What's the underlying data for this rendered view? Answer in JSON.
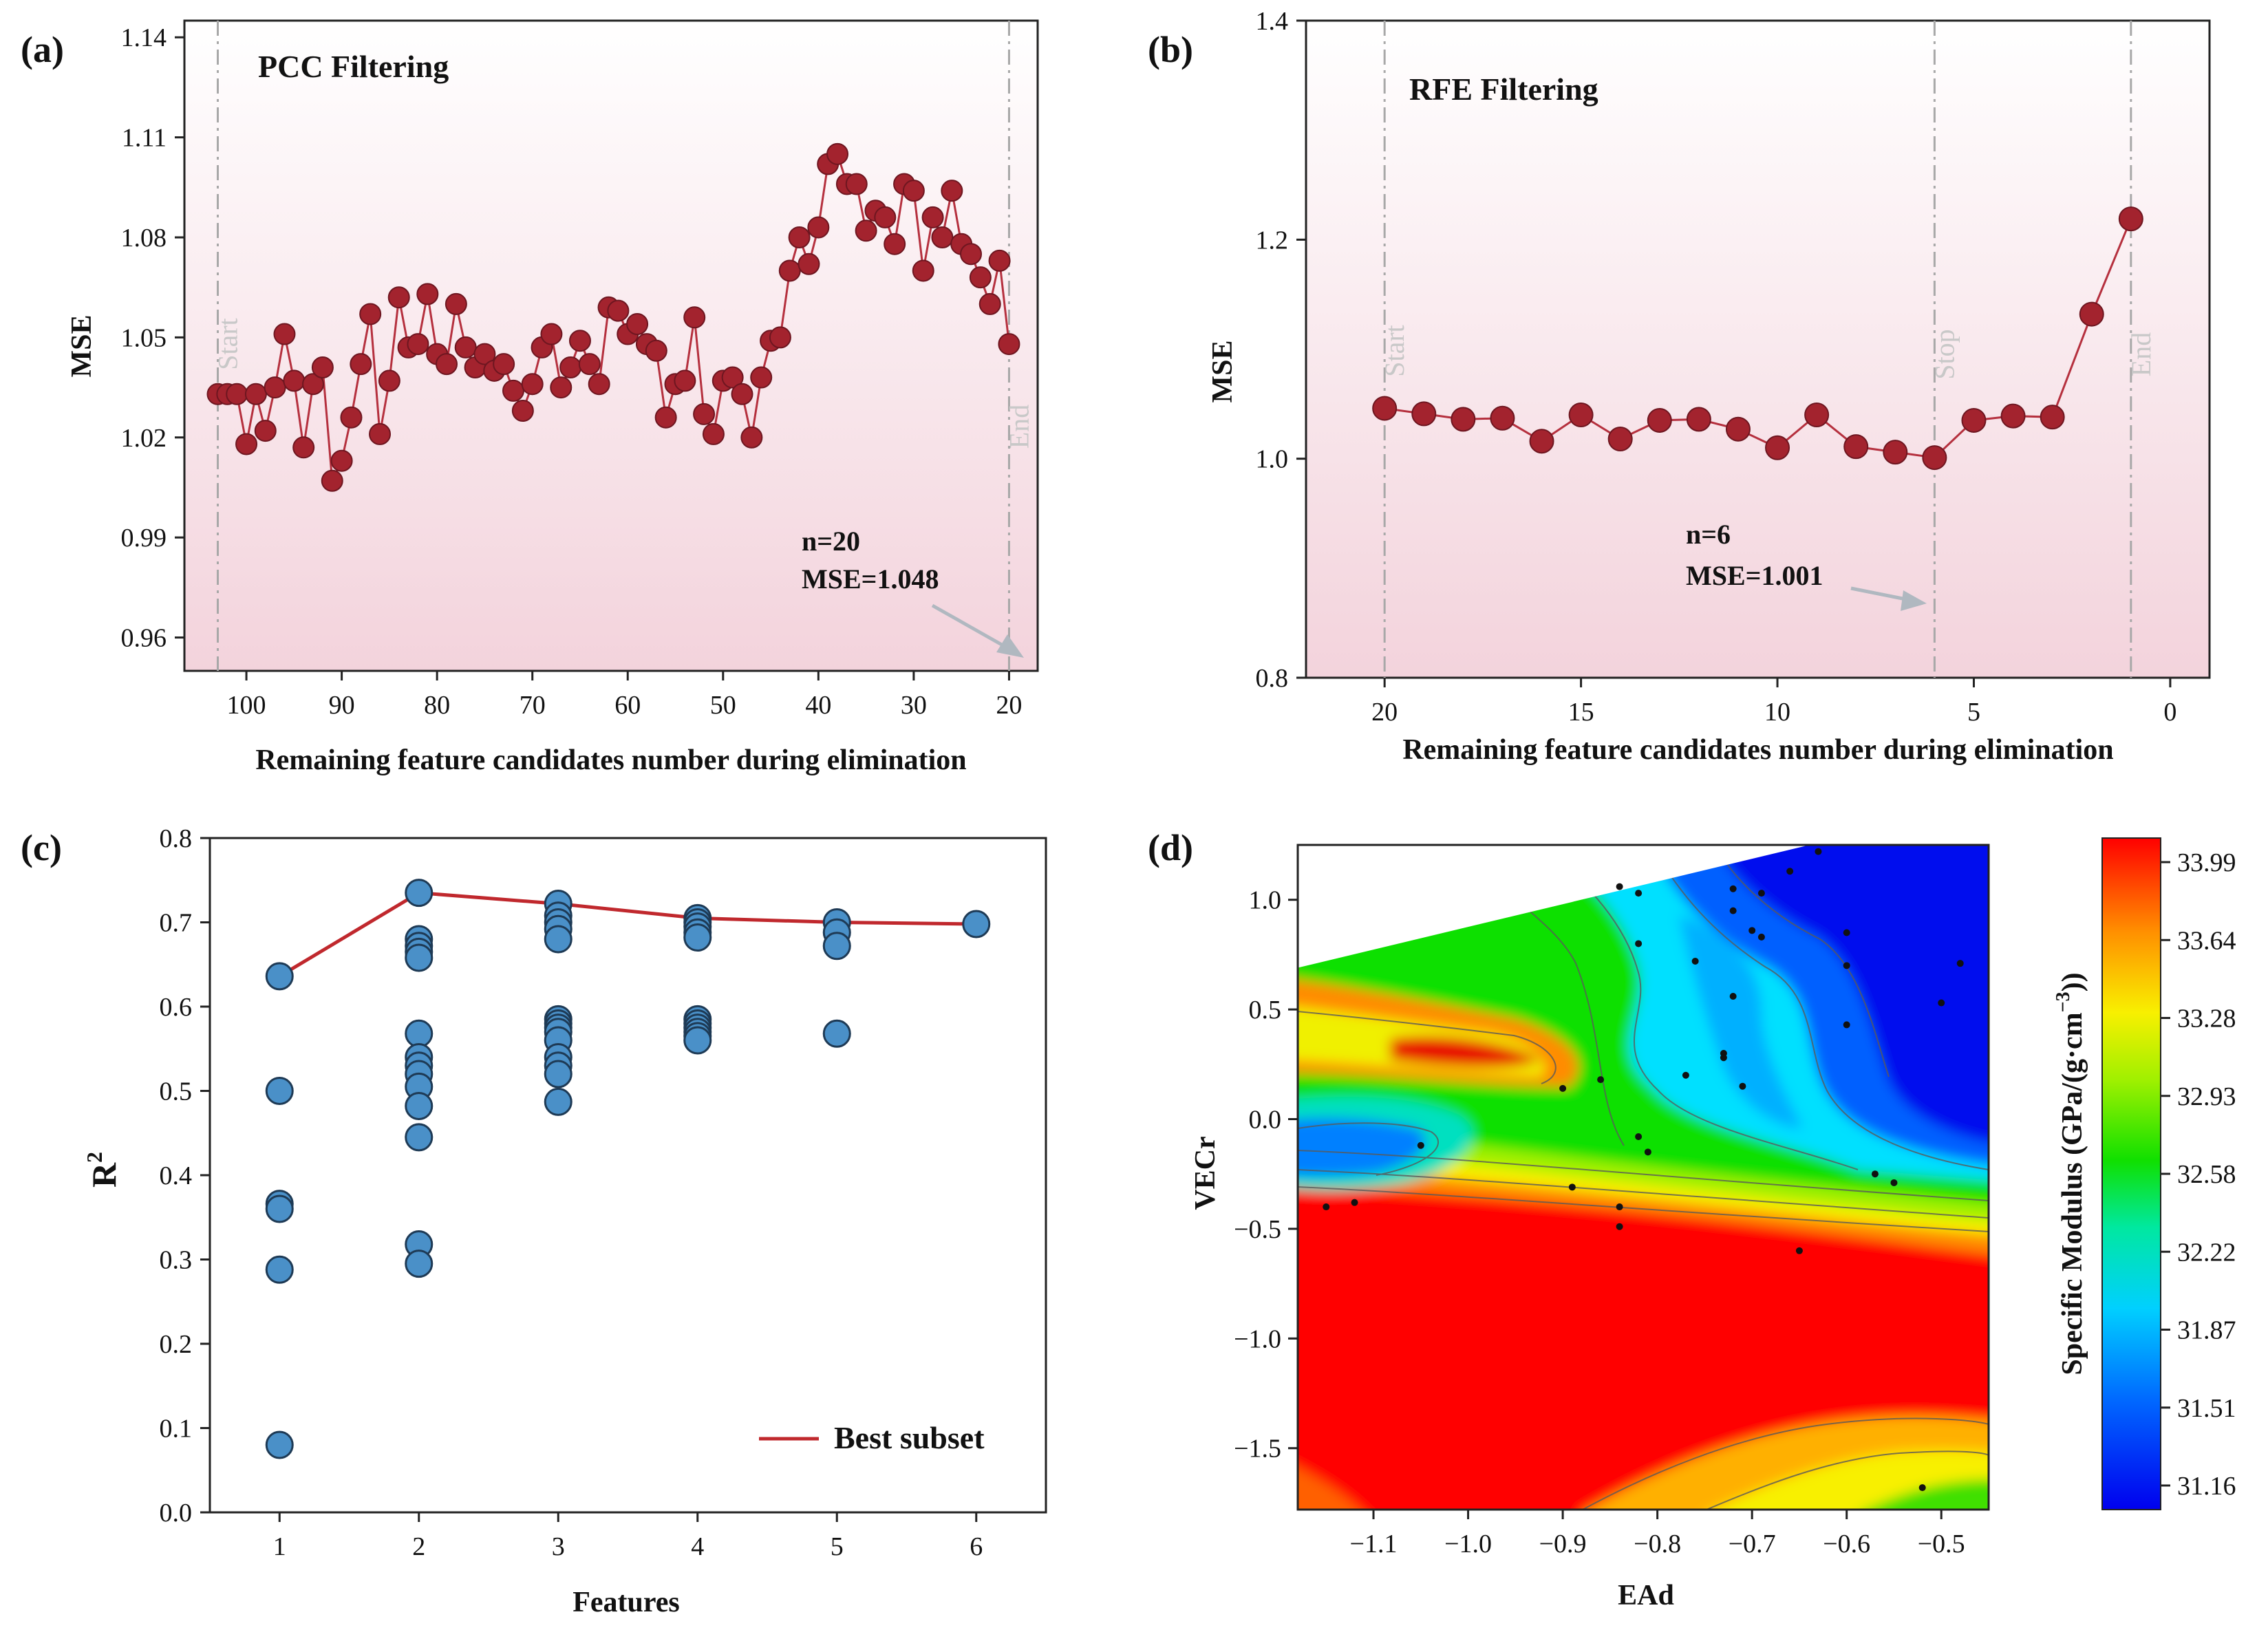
{
  "chart_data": [
    {
      "panel": "(a)",
      "type": "line",
      "title": "PCC Filtering",
      "xlabel": "Remaining feature candidates number during elimination",
      "ylabel": "MSE",
      "xlim": [
        106.5,
        17
      ],
      "ylim": [
        0.95,
        1.145
      ],
      "xticks": [
        100,
        90,
        80,
        70,
        60,
        50,
        40,
        30,
        20
      ],
      "yticks": [
        "0.96",
        "0.99",
        "1.02",
        "1.05",
        "1.08",
        "1.11",
        "1.14"
      ],
      "vlines": [
        {
          "x": 103,
          "label": "Start"
        },
        {
          "x": 20,
          "label": "End"
        }
      ],
      "annotation": {
        "line1": "n=20",
        "line2": "MSE=1.048"
      },
      "x": [
        103,
        102,
        101,
        100,
        99,
        98,
        97,
        96,
        95,
        94,
        93,
        92,
        91,
        90,
        89,
        88,
        87,
        86,
        85,
        84,
        83,
        82,
        81,
        80,
        79,
        78,
        77,
        76,
        75,
        74,
        73,
        72,
        71,
        70,
        69,
        68,
        67,
        66,
        65,
        64,
        63,
        62,
        61,
        60,
        59,
        58,
        57,
        56,
        55,
        54,
        53,
        52,
        51,
        50,
        49,
        48,
        47,
        46,
        45,
        44,
        43,
        42,
        41,
        40,
        39,
        38,
        37,
        36,
        35,
        34,
        33,
        32,
        31,
        30,
        29,
        28,
        27,
        26,
        25,
        24,
        23,
        22,
        21,
        20
      ],
      "y": [
        1.033,
        1.033,
        1.033,
        1.018,
        1.033,
        1.022,
        1.035,
        1.051,
        1.037,
        1.017,
        1.036,
        1.041,
        1.007,
        1.013,
        1.026,
        1.042,
        1.057,
        1.021,
        1.037,
        1.062,
        1.047,
        1.048,
        1.063,
        1.045,
        1.042,
        1.06,
        1.047,
        1.041,
        1.045,
        1.04,
        1.042,
        1.034,
        1.028,
        1.036,
        1.047,
        1.051,
        1.035,
        1.041,
        1.049,
        1.042,
        1.036,
        1.059,
        1.058,
        1.051,
        1.054,
        1.048,
        1.046,
        1.026,
        1.036,
        1.037,
        1.056,
        1.027,
        1.021,
        1.037,
        1.038,
        1.033,
        1.02,
        1.038,
        1.049,
        1.05,
        1.07,
        1.08,
        1.072,
        1.083,
        1.102,
        1.105,
        1.096,
        1.096,
        1.082,
        1.088,
        1.086,
        1.078,
        1.096,
        1.094,
        1.07,
        1.086,
        1.08,
        1.094,
        1.078,
        1.075,
        1.068,
        1.06,
        1.073,
        1.048
      ]
    },
    {
      "panel": "(b)",
      "type": "line",
      "title": "RFE Filtering",
      "xlabel": "Remaining feature candidates number during elimination",
      "ylabel": "MSE",
      "xlim": [
        22,
        -1
      ],
      "ylim": [
        0.8,
        1.4
      ],
      "xticks": [
        20,
        15,
        10,
        5,
        0
      ],
      "yticks": [
        "0.8",
        "1.0",
        "1.2",
        "1.4"
      ],
      "vlines": [
        {
          "x": 20,
          "label": "Start"
        },
        {
          "x": 6,
          "label": "Stop"
        },
        {
          "x": 1,
          "label": "End"
        }
      ],
      "annotation": {
        "line1": "n=6",
        "line2": "MSE=1.001"
      },
      "x": [
        20,
        19,
        18,
        17,
        16,
        15,
        14,
        13,
        12,
        11,
        10,
        9,
        8,
        7,
        6,
        5,
        4,
        3,
        2,
        1
      ],
      "y": [
        1.046,
        1.041,
        1.036,
        1.037,
        1.016,
        1.04,
        1.018,
        1.035,
        1.036,
        1.027,
        1.01,
        1.04,
        1.011,
        1.006,
        1.001,
        1.035,
        1.039,
        1.038,
        1.132,
        1.219
      ]
    },
    {
      "panel": "(c)",
      "type": "scatter",
      "xlabel": "Features",
      "ylabel": "R",
      "ylabel_sup": "2",
      "xlim": [
        0.5,
        6.5
      ],
      "ylim": [
        0.0,
        0.8
      ],
      "xticks": [
        1,
        2,
        3,
        4,
        5,
        6
      ],
      "yticks": [
        "0.0",
        "0.1",
        "0.2",
        "0.3",
        "0.4",
        "0.5",
        "0.6",
        "0.7",
        "0.8"
      ],
      "legend": {
        "label": "Best subset",
        "position": "lower-right"
      },
      "points": [
        {
          "x": 1,
          "values": [
            0.636,
            0.5,
            0.366,
            0.36,
            0.288,
            0.08
          ]
        },
        {
          "x": 2,
          "values": [
            0.735,
            0.68,
            0.672,
            0.665,
            0.658,
            0.568,
            0.54,
            0.53,
            0.52,
            0.505,
            0.482,
            0.445,
            0.318,
            0.295
          ]
        },
        {
          "x": 3,
          "values": [
            0.722,
            0.708,
            0.7,
            0.692,
            0.68,
            0.585,
            0.58,
            0.575,
            0.57,
            0.56,
            0.54,
            0.53,
            0.52,
            0.487
          ]
        },
        {
          "x": 4,
          "values": [
            0.705,
            0.7,
            0.695,
            0.688,
            0.682,
            0.585,
            0.58,
            0.575,
            0.57,
            0.565,
            0.56
          ]
        },
        {
          "x": 5,
          "values": [
            0.7,
            0.688,
            0.672,
            0.568
          ]
        },
        {
          "x": 6,
          "values": [
            0.698
          ]
        }
      ],
      "best_subset": {
        "x": [
          1,
          2,
          3,
          4,
          5,
          6
        ],
        "y": [
          0.636,
          0.735,
          0.722,
          0.705,
          0.7,
          0.698
        ]
      }
    },
    {
      "panel": "(d)",
      "type": "heatmap",
      "xlabel": "EAd",
      "ylabel": "VECr",
      "xlim": [
        -1.18,
        -0.45
      ],
      "ylim": [
        -1.78,
        1.25
      ],
      "xticks": [
        "−1.1",
        "−1.0",
        "−0.9",
        "−0.8",
        "−0.7",
        "−0.6",
        "−0.5"
      ],
      "yticks": [
        "−1.5",
        "−1.0",
        "−0.5",
        "0.0",
        "0.5",
        "1.0"
      ],
      "colorbar": {
        "label": "Specific Modulus (GPa/(g·cm",
        "label_sup": "−3",
        "label_end": "))",
        "ticks": [
          "31.16",
          "31.51",
          "31.87",
          "32.22",
          "32.58",
          "32.93",
          "33.28",
          "33.64",
          "33.99"
        ]
      },
      "sample_points": [
        [
          -1.12,
          -0.38
        ],
        [
          -1.15,
          -0.4
        ],
        [
          -1.05,
          -0.12
        ],
        [
          -0.9,
          0.14
        ],
        [
          -0.86,
          0.18
        ],
        [
          -0.84,
          -0.4
        ],
        [
          -0.84,
          -0.49
        ],
        [
          -0.82,
          -0.08
        ],
        [
          -0.81,
          -0.15
        ],
        [
          -0.89,
          -0.31
        ],
        [
          -0.84,
          1.06
        ],
        [
          -0.82,
          1.03
        ],
        [
          -0.82,
          0.8
        ],
        [
          -0.77,
          0.2
        ],
        [
          -0.76,
          0.72
        ],
        [
          -0.73,
          0.3
        ],
        [
          -0.73,
          0.28
        ],
        [
          -0.72,
          0.56
        ],
        [
          -0.71,
          0.15
        ],
        [
          -0.7,
          0.86
        ],
        [
          -0.69,
          0.83
        ],
        [
          -0.72,
          0.95
        ],
        [
          -0.72,
          1.05
        ],
        [
          -0.66,
          1.13
        ],
        [
          -0.65,
          -0.6
        ],
        [
          -0.6,
          0.43
        ],
        [
          -0.6,
          0.7
        ],
        [
          -0.6,
          0.85
        ],
        [
          -0.57,
          -0.25
        ],
        [
          -0.55,
          -0.29
        ],
        [
          -0.52,
          -1.68
        ],
        [
          -0.5,
          0.53
        ],
        [
          -0.48,
          0.71
        ],
        [
          -0.63,
          1.22
        ],
        [
          -0.69,
          1.03
        ]
      ]
    }
  ]
}
